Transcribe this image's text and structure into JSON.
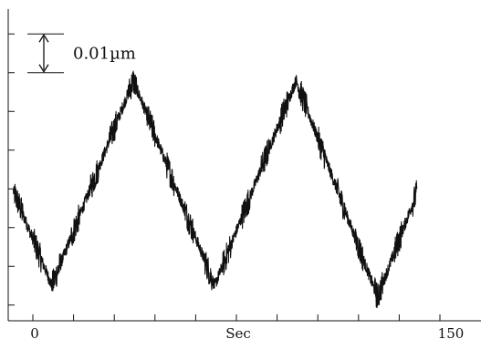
{
  "chart_data": {
    "type": "line",
    "xlabel": "Sec",
    "xlim": [
      0,
      150
    ],
    "x_tick_labels": [
      {
        "x": 0,
        "label": "0"
      },
      {
        "x": 150,
        "label": "150"
      }
    ],
    "x_ticks": [
      0,
      15,
      30,
      45,
      60,
      75,
      90,
      105,
      120,
      135,
      150
    ],
    "scale_bar": {
      "label": "0.01µm",
      "value_um": 0.01
    },
    "y_ticks_um": [
      0.0,
      0.01,
      0.02,
      0.03,
      0.04,
      0.05,
      0.06,
      0.07
    ],
    "ylim_um": [
      -0.005,
      0.075
    ],
    "series": [
      {
        "x": [
          -7.5,
          7,
          37,
          67,
          97,
          127,
          142
        ],
        "y": [
          0.03,
          0.005,
          0.058,
          0.005,
          0.058,
          0.002,
          0.03
        ]
      }
    ],
    "noise_amplitude_um": 0.0035,
    "grid": false,
    "color": "#111111"
  }
}
